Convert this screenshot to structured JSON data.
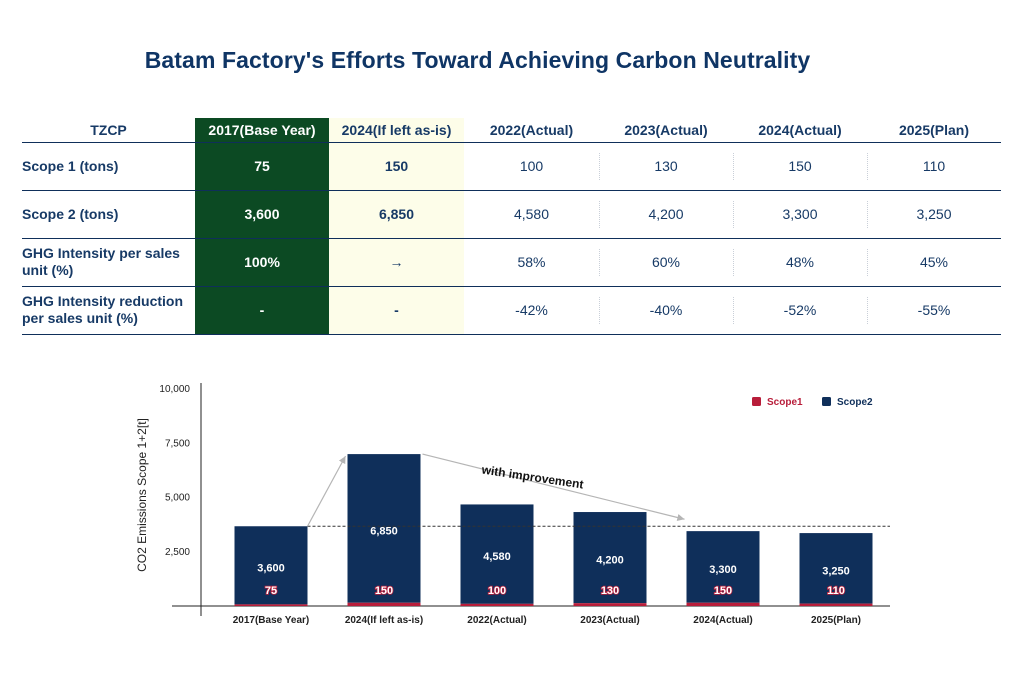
{
  "title": "Batam Factory's Efforts Toward Achieving Carbon Neutrality",
  "table": {
    "columns": [
      "TZCP",
      "2017(Base Year)",
      "2024(If left as-is)",
      "2022(Actual)",
      "2023(Actual)",
      "2024(Actual)",
      "2025(Plan)"
    ],
    "rows": [
      {
        "label": "Scope 1 (tons)",
        "cells": [
          "75",
          "150",
          "100",
          "130",
          "150",
          "110"
        ]
      },
      {
        "label": "Scope 2 (tons)",
        "cells": [
          "3,600",
          "6,850",
          "4,580",
          "4,200",
          "3,300",
          "3,250"
        ]
      },
      {
        "label": "GHG Intensity per sales unit (%)",
        "cells": [
          "100%",
          "→",
          "58%",
          "60%",
          "48%",
          "45%"
        ]
      },
      {
        "label": "GHG Intensity reduction per sales unit (%)",
        "cells": [
          "-",
          "-",
          "-42%",
          "-40%",
          "-52%",
          "-55%"
        ]
      }
    ],
    "colors": {
      "base_year_bg": "#0c4a23",
      "as_is_bg": "#fdfde9",
      "text": "#173a66"
    }
  },
  "chart_data": {
    "type": "bar",
    "stacked": true,
    "categories": [
      "2017(Base Year)",
      "2024(If left as-is)",
      "2022(Actual)",
      "2023(Actual)",
      "2024(Actual)",
      "2025(Plan)"
    ],
    "series": [
      {
        "name": "Scope1",
        "values": [
          75,
          150,
          100,
          130,
          150,
          110
        ],
        "color": "#b81d3a"
      },
      {
        "name": "Scope2",
        "values": [
          3600,
          6850,
          4580,
          4200,
          3300,
          3250
        ],
        "color": "#0f2f5a"
      }
    ],
    "ylabel": "CO2 Emissions Scope 1+2[t]",
    "ylim": [
      0,
      10000
    ],
    "yticks": [
      2500,
      5000,
      7500,
      10000
    ],
    "ytick_labels": [
      "2,500",
      "5,000",
      "7,500",
      "10,000"
    ],
    "segment_labels": {
      "Scope1": [
        "75",
        "150",
        "100",
        "130",
        "150",
        "110"
      ],
      "Scope2": [
        "3,600",
        "6,850",
        "4,580",
        "4,200",
        "3,300",
        "3,250"
      ]
    },
    "reference_line": {
      "value": 3675,
      "style": "dashed"
    },
    "annotation": "with improvement",
    "legend_position": "top-right",
    "grid": false
  }
}
